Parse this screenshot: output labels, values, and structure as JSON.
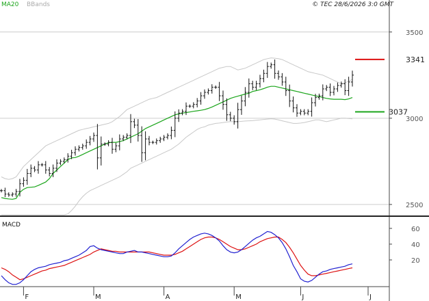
{
  "header": {
    "legend_ma": "MA20",
    "legend_bb": "BBands",
    "copyright": "© TEC 28/6/2026 3:0 GMT"
  },
  "colors": {
    "price": "#111111",
    "ma": "#1aa51a",
    "bbands": "#c8c8c8",
    "macd": "#1f1fd0",
    "signal": "#dd1111",
    "resistance": "#dd1111",
    "support": "#1aa51a",
    "grid": "#cccccc",
    "axis": "#444444"
  },
  "chart_data": [
    {
      "type": "line",
      "panel": "price",
      "x_labels": [
        "F",
        "M",
        "A",
        "M",
        "J",
        "J"
      ],
      "yticks": [
        2500,
        3000,
        3500
      ],
      "ytick_labels": [
        "2500",
        "3000",
        "3500"
      ],
      "ylim": [
        2440,
        3630
      ],
      "ohlc_close": [
        2580,
        2560,
        2555,
        2560,
        2575,
        2620,
        2640,
        2680,
        2710,
        2700,
        2730,
        2730,
        2700,
        2680,
        2710,
        2740,
        2750,
        2760,
        2780,
        2800,
        2820,
        2830,
        2840,
        2860,
        2880,
        2900,
        2770,
        2850,
        2850,
        2860,
        2820,
        2840,
        2880,
        2890,
        2900,
        2980,
        2960,
        2900,
        2800,
        2880,
        2860,
        2860,
        2870,
        2880,
        2890,
        2900,
        2930,
        3000,
        3030,
        3040,
        3070,
        3070,
        3080,
        3100,
        3130,
        3150,
        3160,
        3180,
        3180,
        3130,
        3080,
        3020,
        3000,
        2980,
        3050,
        3100,
        3150,
        3200,
        3180,
        3200,
        3230,
        3260,
        3300,
        3310,
        3260,
        3240,
        3210,
        3160,
        3100,
        3060,
        3030,
        3040,
        3030,
        3040,
        3090,
        3120,
        3130,
        3170,
        3180,
        3150,
        3170,
        3190,
        3200,
        3160,
        3210,
        3250
      ],
      "ma20": [
        2540,
        2535,
        2532,
        2530,
        2535,
        2570,
        2588,
        2598,
        2600,
        2602,
        2610,
        2620,
        2630,
        2650,
        2680,
        2700,
        2720,
        2740,
        2760,
        2770,
        2772,
        2780,
        2790,
        2800,
        2810,
        2820,
        2830,
        2840,
        2850,
        2858,
        2860,
        2860,
        2865,
        2870,
        2880,
        2890,
        2900,
        2910,
        2925,
        2940,
        2950,
        2960,
        2970,
        2980,
        2990,
        3000,
        3010,
        3020,
        3025,
        3030,
        3033,
        3036,
        3040,
        3043,
        3046,
        3050,
        3057,
        3065,
        3075,
        3085,
        3095,
        3105,
        3115,
        3122,
        3128,
        3134,
        3140,
        3145,
        3155,
        3160,
        3165,
        3172,
        3180,
        3185,
        3185,
        3180,
        3175,
        3170,
        3165,
        3160,
        3155,
        3150,
        3145,
        3140,
        3135,
        3130,
        3126,
        3120,
        3115,
        3112,
        3110,
        3110,
        3110,
        3108,
        3112,
        3120
      ],
      "bb_upper": [
        2660,
        2650,
        2645,
        2650,
        2660,
        2690,
        2720,
        2740,
        2760,
        2780,
        2800,
        2820,
        2840,
        2850,
        2860,
        2870,
        2880,
        2890,
        2900,
        2910,
        2920,
        2930,
        2935,
        2940,
        2945,
        2950,
        2955,
        2960,
        2965,
        2970,
        2980,
        2995,
        3010,
        3030,
        3050,
        3060,
        3070,
        3080,
        3090,
        3100,
        3110,
        3115,
        3120,
        3130,
        3140,
        3150,
        3160,
        3170,
        3180,
        3190,
        3200,
        3210,
        3220,
        3230,
        3240,
        3250,
        3260,
        3270,
        3280,
        3290,
        3295,
        3300,
        3300,
        3290,
        3280,
        3285,
        3290,
        3300,
        3310,
        3320,
        3330,
        3340,
        3345,
        3350,
        3348,
        3345,
        3340,
        3330,
        3320,
        3310,
        3300,
        3290,
        3280,
        3270,
        3265,
        3260,
        3255,
        3250,
        3240,
        3230,
        3220,
        3210,
        3200,
        3205,
        3215,
        3225
      ],
      "bb_lower": [
        2440,
        2440,
        2440,
        2440,
        2440,
        2440,
        2440,
        2440,
        2440,
        2440,
        2440,
        2440,
        2440,
        2440,
        2440,
        2440,
        2440,
        2440,
        2445,
        2465,
        2490,
        2520,
        2545,
        2565,
        2580,
        2590,
        2600,
        2610,
        2620,
        2630,
        2640,
        2650,
        2660,
        2675,
        2690,
        2710,
        2720,
        2730,
        2740,
        2750,
        2760,
        2770,
        2780,
        2790,
        2800,
        2810,
        2820,
        2835,
        2850,
        2870,
        2890,
        2905,
        2920,
        2935,
        2945,
        2950,
        2960,
        2965,
        2970,
        2972,
        2975,
        2978,
        2980,
        2980,
        2980,
        2982,
        2984,
        2985,
        2986,
        2988,
        2990,
        2993,
        2995,
        2997,
        2995,
        2990,
        2985,
        2980,
        2975,
        2970,
        2970,
        2972,
        2975,
        2980,
        2985,
        2990,
        2990,
        2985,
        2980,
        2985,
        2990,
        2995,
        3000,
        3000,
        2998,
        2996
      ],
      "levels": [
        {
          "value": 3341,
          "label": "3341",
          "role": "resistance"
        },
        {
          "value": 3037,
          "label": "3037",
          "role": "support"
        }
      ]
    },
    {
      "type": "line",
      "panel": "indicator",
      "title": "MACD",
      "x_labels": [
        "F",
        "M",
        "A",
        "M",
        "J",
        "J"
      ],
      "yticks": [
        20,
        40,
        60
      ],
      "ytick_labels": [
        "20",
        "40",
        "60"
      ],
      "ylim": [
        -13,
        72
      ],
      "series": [
        {
          "role": "macd",
          "values": [
            0,
            -5,
            -9,
            -11,
            -11,
            -9,
            -5,
            0,
            5,
            8,
            10,
            11,
            12,
            14,
            15,
            16,
            17,
            19,
            20,
            22,
            24,
            26,
            29,
            32,
            37,
            38,
            35,
            33,
            32,
            31,
            30,
            29,
            28,
            28,
            30,
            31,
            32,
            30,
            30,
            29,
            28,
            27,
            26,
            25,
            24,
            24,
            25,
            29,
            34,
            38,
            42,
            46,
            49,
            51,
            53,
            54,
            53,
            51,
            48,
            44,
            38,
            33,
            30,
            29,
            30,
            33,
            37,
            41,
            45,
            48,
            50,
            53,
            56,
            55,
            52,
            48,
            42,
            34,
            24,
            13,
            5,
            -4,
            -7,
            -8,
            -6,
            -2,
            2,
            5,
            6,
            8,
            9,
            10,
            11,
            12,
            14,
            15
          ]
        },
        {
          "role": "signal",
          "values": [
            10,
            8,
            5,
            1,
            -2,
            -5,
            -4,
            -2,
            0,
            2,
            4,
            6,
            7,
            9,
            10,
            11,
            12,
            13,
            15,
            17,
            19,
            21,
            23,
            25,
            27,
            30,
            32,
            34,
            33,
            32,
            31,
            31,
            30,
            30,
            30,
            30,
            30,
            30,
            30,
            30,
            30,
            29,
            28,
            27,
            26,
            26,
            26,
            27,
            29,
            31,
            34,
            37,
            40,
            43,
            46,
            48,
            49,
            49,
            48,
            46,
            43,
            40,
            37,
            35,
            33,
            33,
            34,
            36,
            38,
            40,
            43,
            45,
            47,
            48,
            49,
            49,
            46,
            42,
            36,
            29,
            21,
            13,
            7,
            2,
            0,
            0,
            1,
            2,
            3,
            4,
            5,
            6,
            7,
            8,
            9,
            10
          ]
        }
      ]
    }
  ]
}
